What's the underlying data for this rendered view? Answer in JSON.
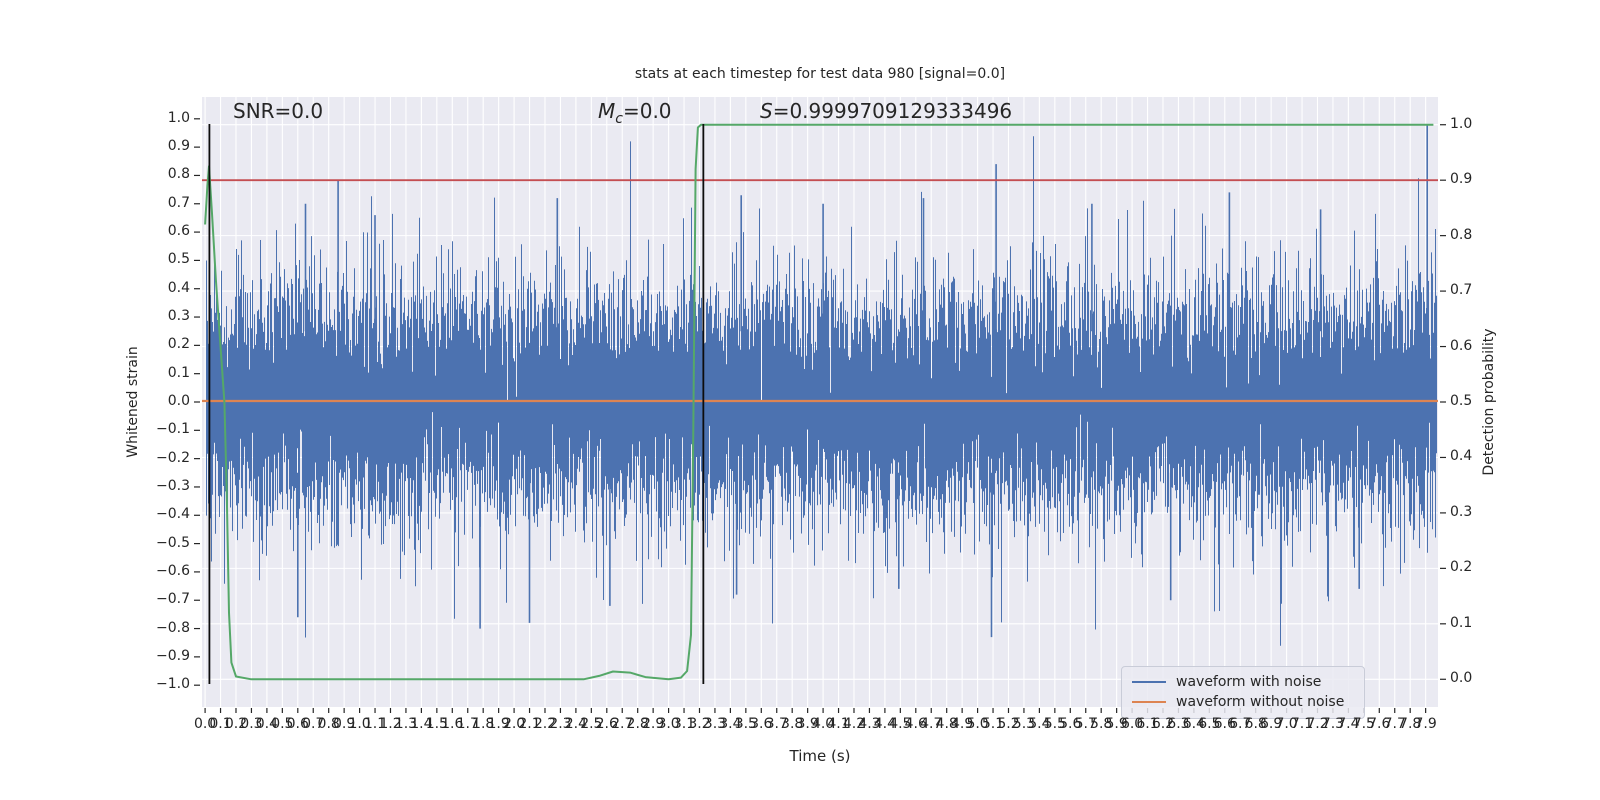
{
  "chart_data": {
    "type": "line",
    "title": "stats at each timestep for test data 980 [signal=0.0]",
    "xlabel": "Time (s)",
    "ylabel_left": "Whitened strain",
    "ylabel_right": "Detection probability",
    "annotations": [
      {
        "text": "SNR=0.0",
        "t": 0.18
      },
      {
        "prefix": "M",
        "sub": "c",
        "suffix": "=0.0",
        "t": 2.54
      },
      {
        "prefix": "S",
        "suffix": "=0.9999709129333496",
        "t": 3.59
      }
    ],
    "axes": {
      "xlim": [
        -0.02,
        7.98
      ],
      "ylim_left": [
        -1.077,
        1.077
      ],
      "ylim_right": [
        -0.05,
        1.05
      ],
      "grid": true,
      "plot_bg": "#eaeaf2",
      "grid_color": "#ffffff",
      "tick_color": "#262626"
    },
    "xticks": [
      "0.0",
      "0.1",
      "0.2",
      "0.3",
      "0.4",
      "0.5",
      "0.6",
      "0.7",
      "0.8",
      "0.9",
      "1.0",
      "1.1",
      "1.2",
      "1.3",
      "1.4",
      "1.5",
      "1.6",
      "1.7",
      "1.8",
      "1.9",
      "2.0",
      "2.1",
      "2.2",
      "2.3",
      "2.4",
      "2.5",
      "2.6",
      "2.7",
      "2.8",
      "2.9",
      "3.0",
      "3.1",
      "3.2",
      "3.3",
      "3.4",
      "3.5",
      "3.6",
      "3.7",
      "3.8",
      "3.9",
      "4.0",
      "4.1",
      "4.2",
      "4.3",
      "4.4",
      "4.5",
      "4.6",
      "4.7",
      "4.8",
      "4.9",
      "5.0",
      "5.1",
      "5.2",
      "5.3",
      "5.4",
      "5.5",
      "5.6",
      "5.7",
      "5.8",
      "5.9",
      "6.0",
      "6.1",
      "6.2",
      "6.3",
      "6.4",
      "6.5",
      "6.6",
      "6.7",
      "6.8",
      "6.9",
      "7.0",
      "7.1",
      "7.2",
      "7.3",
      "7.4",
      "7.5",
      "7.6",
      "7.7",
      "7.8",
      "7.9"
    ],
    "yticks_left": [
      "1.0",
      "0.9",
      "0.8",
      "0.7",
      "0.6",
      "0.5",
      "0.4",
      "0.3",
      "0.2",
      "0.1",
      "0.0",
      "−0.1",
      "−0.2",
      "−0.3",
      "−0.4",
      "−0.5",
      "−0.6",
      "−0.7",
      "−0.8",
      "−0.9",
      "−1.0"
    ],
    "yticks_right": [
      "1.0",
      "0.9",
      "0.8",
      "0.7",
      "0.6",
      "0.5",
      "0.4",
      "0.3",
      "0.2",
      "0.1",
      "0.0"
    ],
    "series": [
      {
        "name": "waveform with noise",
        "type": "noise_band",
        "axis": "left",
        "color": "#4c72b0",
        "sigma": 0.2,
        "samples_per_column": 12,
        "seed": 980,
        "t_range": [
          0.0,
          7.97
        ],
        "notable_spikes": [
          [
            0.6,
            -0.76
          ],
          [
            0.65,
            0.7
          ],
          [
            0.861,
            0.785
          ],
          [
            1.1,
            0.66
          ],
          [
            1.78,
            -0.8
          ],
          [
            2.1,
            -0.78
          ],
          [
            2.28,
            0.72
          ],
          [
            2.62,
            -0.72
          ],
          [
            3.44,
            -0.68
          ],
          [
            3.47,
            0.73
          ],
          [
            4.0,
            0.7
          ],
          [
            4.49,
            -0.66
          ],
          [
            4.65,
            0.72
          ],
          [
            5.09,
            -0.83
          ],
          [
            5.12,
            0.84
          ],
          [
            5.74,
            0.7
          ],
          [
            6.25,
            -0.7
          ],
          [
            6.63,
            0.74
          ],
          [
            7.22,
            0.68
          ],
          [
            7.47,
            -0.66
          ],
          [
            7.91,
            0.98
          ]
        ]
      },
      {
        "name": "waveform without noise",
        "type": "hline",
        "axis": "left",
        "color": "#dd8452",
        "value": 0.0
      },
      {
        "name": "detection probability",
        "type": "line",
        "axis": "right",
        "color": "#55a868",
        "points": [
          [
            0.0,
            0.82
          ],
          [
            0.015,
            0.89
          ],
          [
            0.025,
            0.925
          ],
          [
            0.045,
            0.84
          ],
          [
            0.07,
            0.72
          ],
          [
            0.1,
            0.6
          ],
          [
            0.125,
            0.5
          ],
          [
            0.14,
            0.34
          ],
          [
            0.155,
            0.12
          ],
          [
            0.17,
            0.03
          ],
          [
            0.2,
            0.005
          ],
          [
            0.3,
            0.0
          ],
          [
            2.45,
            0.0
          ],
          [
            2.55,
            0.006
          ],
          [
            2.64,
            0.014
          ],
          [
            2.75,
            0.012
          ],
          [
            2.85,
            0.004
          ],
          [
            3.0,
            0.0
          ],
          [
            3.08,
            0.003
          ],
          [
            3.12,
            0.015
          ],
          [
            3.145,
            0.08
          ],
          [
            3.16,
            0.45
          ],
          [
            3.175,
            0.92
          ],
          [
            3.19,
            0.995
          ],
          [
            3.21,
            1.0
          ],
          [
            7.95,
            1.0
          ]
        ]
      },
      {
        "name": "detection threshold",
        "type": "hline",
        "axis": "right",
        "color": "#c44e52",
        "value": 0.9
      }
    ],
    "vlines": {
      "color": "#0d0d0d",
      "times": [
        0.028,
        3.225
      ]
    },
    "legend": {
      "position": "lower right",
      "items": [
        {
          "label": "waveform with noise",
          "color": "#4c72b0"
        },
        {
          "label": "waveform without noise",
          "color": "#dd8452"
        }
      ]
    }
  }
}
